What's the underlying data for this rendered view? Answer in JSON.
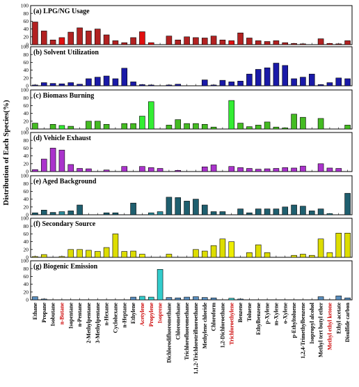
{
  "chart_data": {
    "type": "bar",
    "ylabel": "Distribution of Each Species(%)",
    "ylim": [
      0,
      100
    ],
    "yticks": [
      0,
      20,
      40,
      60,
      80,
      100
    ],
    "categories": [
      "Ethane",
      "Propane",
      "Isobutane",
      "n-Butane",
      "Isopentane",
      "n-Pentane",
      "2-Methylpentane",
      "3-Methylpentane",
      "n-Hexane",
      "Cyclohexane",
      "n-Heptane",
      "Ethylene",
      "Acetylene",
      "Propylene",
      "Isoprene",
      "Dichlorodifluoromethane",
      "Chloromethane",
      "Trichlorofluoromethane",
      "1,1,2-Trichlorotrifluoroethane",
      "Methylene chloride",
      "Chloroform",
      "1,2-Dichloroethane",
      "Trichloroethylene",
      "Benzene",
      "Toluene",
      "Ethylbenzene",
      "p-Xylene",
      "m-Xylene",
      "o-Xylene",
      "p-Ethyltoluene",
      "1,2,4-Trimethylbenzene",
      "Isopropyl alcohol",
      "Methyl tert butyl ether",
      "Methyl ethyl ketone",
      "Ethyl acetate",
      "Disulfide carbon"
    ],
    "highlight_categories": [
      "n-Butane",
      "Acetylene",
      "Propylene",
      "Isoprene",
      "Trichloroethylene",
      "Methyl ethyl ketone"
    ],
    "panels": [
      {
        "title": "(a) LPG/NG Usage",
        "color": "#b22222",
        "highlight": "#e01010",
        "values": [
          58,
          35,
          12,
          18,
          32,
          43,
          35,
          40,
          25,
          10,
          5,
          18,
          33,
          5,
          0,
          22,
          12,
          20,
          18,
          17,
          22,
          12,
          10,
          30,
          17,
          10,
          8,
          10,
          5,
          3,
          2,
          0,
          15,
          3,
          2,
          10
        ]
      },
      {
        "title": "(b) Solvent Utilization",
        "color": "#1a1aa8",
        "highlight": "#1a1aa8",
        "values": [
          2,
          8,
          6,
          5,
          8,
          4,
          18,
          22,
          25,
          18,
          45,
          10,
          3,
          2,
          0,
          2,
          4,
          0,
          0,
          15,
          2,
          14,
          10,
          12,
          30,
          42,
          46,
          58,
          52,
          18,
          22,
          30,
          3,
          8,
          20,
          18
        ]
      },
      {
        "title": "(c) Biomass Burning",
        "color": "#44bb22",
        "highlight": "#33ee33",
        "values": [
          15,
          0,
          12,
          9,
          7,
          0,
          20,
          20,
          12,
          0,
          14,
          14,
          33,
          70,
          0,
          10,
          24,
          14,
          14,
          12,
          5,
          0,
          73,
          15,
          6,
          10,
          18,
          5,
          3,
          38,
          30,
          0,
          27,
          0,
          0,
          10
        ]
      },
      {
        "title": "(d) Vehicle Exhaust",
        "color": "#aa33cc",
        "highlight": "#aa33cc",
        "values": [
          5,
          32,
          60,
          55,
          18,
          8,
          7,
          0,
          4,
          0,
          13,
          0,
          13,
          10,
          8,
          0,
          3,
          0,
          0,
          12,
          17,
          0,
          13,
          10,
          8,
          6,
          7,
          8,
          10,
          9,
          14,
          0,
          20,
          9,
          8,
          0
        ]
      },
      {
        "title": "(e) Aged Background",
        "color": "#1f5f6f",
        "highlight": "#2a8a9a",
        "values": [
          5,
          12,
          6,
          8,
          10,
          25,
          0,
          0,
          5,
          5,
          0,
          30,
          0,
          5,
          8,
          45,
          44,
          35,
          40,
          25,
          8,
          8,
          0,
          15,
          5,
          15,
          15,
          15,
          20,
          25,
          22,
          10,
          15,
          3,
          0,
          55
        ]
      },
      {
        "title": "(f) Secondary Source",
        "color": "#dddd00",
        "highlight": "#eeee00",
        "values": [
          2,
          7,
          0,
          2,
          20,
          20,
          18,
          15,
          25,
          60,
          15,
          16,
          8,
          0,
          0,
          8,
          0,
          0,
          20,
          16,
          30,
          47,
          40,
          0,
          12,
          32,
          12,
          0,
          0,
          5,
          8,
          5,
          47,
          12,
          62,
          62
        ]
      },
      {
        "title": "(g) Biogenic Emission",
        "color": "#5a8fbf",
        "highlight": "#33cccc",
        "values": [
          8,
          2,
          0,
          0,
          0,
          0,
          0,
          0,
          0,
          0,
          0,
          7,
          9,
          7,
          78,
          6,
          5,
          7,
          8,
          6,
          5,
          0,
          4,
          2,
          0,
          0,
          0,
          0,
          0,
          0,
          0,
          0,
          8,
          0,
          10,
          5
        ]
      }
    ]
  }
}
